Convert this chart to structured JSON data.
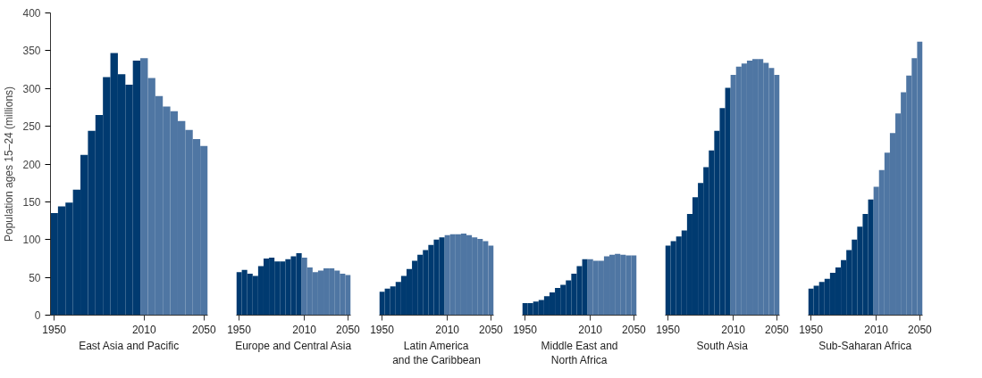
{
  "chart_data": [
    {
      "type": "bar",
      "ylabel": "Population ages 15–24 (millions)",
      "xlabel": "East Asia and Pacific",
      "ylim": [
        0,
        400
      ],
      "yticks": [
        0,
        50,
        100,
        150,
        200,
        250,
        300,
        350,
        400
      ],
      "grid": false,
      "categories": [
        "1950",
        null,
        null,
        null,
        null,
        null,
        null,
        null,
        null,
        null,
        null,
        null,
        "2010",
        null,
        null,
        null,
        null,
        null,
        null,
        null,
        "2050"
      ],
      "values": [
        135,
        144,
        149,
        166,
        212,
        244,
        265,
        315,
        347,
        319,
        305,
        337,
        340,
        314,
        290,
        276,
        270,
        257,
        245,
        233,
        224
      ],
      "colors": [
        "#003a70",
        "#003a70",
        "#003a70",
        "#003a70",
        "#003a70",
        "#003a70",
        "#003a70",
        "#003a70",
        "#003a70",
        "#003a70",
        "#003a70",
        "#003a70",
        "#4f76a3",
        "#4f76a3",
        "#4f76a3",
        "#4f76a3",
        "#4f76a3",
        "#4f76a3",
        "#4f76a3",
        "#4f76a3",
        "#4f76a3"
      ]
    },
    {
      "type": "bar",
      "xlabel": "Europe and Central Asia",
      "ylim": [
        0,
        400
      ],
      "grid": false,
      "tick_labels": "x",
      "categories": [
        "1950",
        null,
        null,
        null,
        null,
        null,
        null,
        null,
        null,
        null,
        null,
        null,
        "2010",
        null,
        null,
        null,
        null,
        null,
        null,
        null,
        "2050"
      ],
      "values": [
        57,
        60,
        55,
        52,
        65,
        75,
        76,
        71,
        71,
        74,
        78,
        82,
        76,
        63,
        57,
        59,
        62,
        62,
        59,
        55,
        53
      ],
      "colors": [
        "#003a70",
        "#003a70",
        "#003a70",
        "#003a70",
        "#003a70",
        "#003a70",
        "#003a70",
        "#003a70",
        "#003a70",
        "#003a70",
        "#003a70",
        "#003a70",
        "#4f76a3",
        "#4f76a3",
        "#4f76a3",
        "#4f76a3",
        "#4f76a3",
        "#4f76a3",
        "#4f76a3",
        "#4f76a3",
        "#4f76a3"
      ]
    },
    {
      "type": "bar",
      "xlabel": "Latin America\nand the Caribbean",
      "ylim": [
        0,
        400
      ],
      "grid": false,
      "tick_labels": "x",
      "categories": [
        "1950",
        null,
        null,
        null,
        null,
        null,
        null,
        null,
        null,
        null,
        null,
        null,
        "2010",
        null,
        null,
        null,
        null,
        null,
        null,
        null,
        "2050"
      ],
      "values": [
        31,
        35,
        38,
        44,
        52,
        61,
        72,
        80,
        86,
        93,
        100,
        103,
        106,
        107,
        107,
        108,
        106,
        103,
        101,
        98,
        92
      ],
      "colors": [
        "#003a70",
        "#003a70",
        "#003a70",
        "#003a70",
        "#003a70",
        "#003a70",
        "#003a70",
        "#003a70",
        "#003a70",
        "#003a70",
        "#003a70",
        "#003a70",
        "#4f76a3",
        "#4f76a3",
        "#4f76a3",
        "#4f76a3",
        "#4f76a3",
        "#4f76a3",
        "#4f76a3",
        "#4f76a3",
        "#4f76a3"
      ]
    },
    {
      "type": "bar",
      "xlabel": "Middle East and\nNorth Africa",
      "ylim": [
        0,
        400
      ],
      "grid": false,
      "tick_labels": "x",
      "categories": [
        "1950",
        null,
        null,
        null,
        null,
        null,
        null,
        null,
        null,
        null,
        null,
        null,
        "2010",
        null,
        null,
        null,
        null,
        null,
        null,
        null,
        "2050"
      ],
      "values": [
        16,
        16,
        18,
        20,
        25,
        30,
        36,
        40,
        46,
        55,
        65,
        74,
        74,
        72,
        72,
        78,
        80,
        81,
        80,
        79,
        79
      ],
      "colors": [
        "#003a70",
        "#003a70",
        "#003a70",
        "#003a70",
        "#003a70",
        "#003a70",
        "#003a70",
        "#003a70",
        "#003a70",
        "#003a70",
        "#003a70",
        "#003a70",
        "#4f76a3",
        "#4f76a3",
        "#4f76a3",
        "#4f76a3",
        "#4f76a3",
        "#4f76a3",
        "#4f76a3",
        "#4f76a3",
        "#4f76a3"
      ]
    },
    {
      "type": "bar",
      "xlabel": "South Asia",
      "ylim": [
        0,
        400
      ],
      "grid": false,
      "tick_labels": "x",
      "categories": [
        "1950",
        null,
        null,
        null,
        null,
        null,
        null,
        null,
        null,
        null,
        null,
        null,
        "2010",
        null,
        null,
        null,
        null,
        null,
        null,
        null,
        "2050"
      ],
      "values": [
        92,
        98,
        104,
        112,
        134,
        156,
        175,
        196,
        218,
        244,
        274,
        301,
        318,
        329,
        333,
        337,
        339,
        339,
        334,
        327,
        318
      ],
      "colors": [
        "#003a70",
        "#003a70",
        "#003a70",
        "#003a70",
        "#003a70",
        "#003a70",
        "#003a70",
        "#003a70",
        "#003a70",
        "#003a70",
        "#003a70",
        "#003a70",
        "#4f76a3",
        "#4f76a3",
        "#4f76a3",
        "#4f76a3",
        "#4f76a3",
        "#4f76a3",
        "#4f76a3",
        "#4f76a3",
        "#4f76a3"
      ]
    },
    {
      "type": "bar",
      "xlabel": "Sub-Saharan Africa",
      "ylim": [
        0,
        400
      ],
      "grid": false,
      "tick_labels": "x",
      "categories": [
        "1950",
        null,
        null,
        null,
        null,
        null,
        null,
        null,
        null,
        null,
        null,
        null,
        "2010",
        null,
        null,
        null,
        null,
        null,
        null,
        null,
        "2050"
      ],
      "values": [
        35,
        39,
        44,
        48,
        56,
        63,
        73,
        86,
        100,
        117,
        134,
        153,
        170,
        192,
        215,
        241,
        267,
        295,
        317,
        340,
        362
      ],
      "colors": [
        "#003a70",
        "#003a70",
        "#003a70",
        "#003a70",
        "#003a70",
        "#003a70",
        "#003a70",
        "#003a70",
        "#003a70",
        "#003a70",
        "#003a70",
        "#003a70",
        "#4f76a3",
        "#4f76a3",
        "#4f76a3",
        "#4f76a3",
        "#4f76a3",
        "#4f76a3",
        "#4f76a3",
        "#4f76a3",
        "#4f76a3"
      ]
    }
  ]
}
